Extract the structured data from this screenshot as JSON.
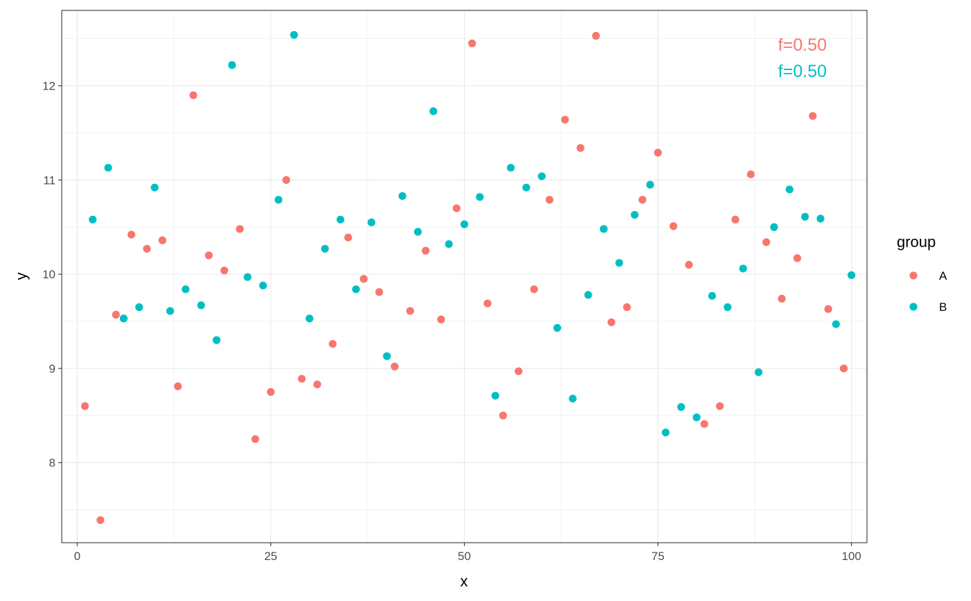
{
  "chart_data": {
    "type": "scatter",
    "xlabel": "x",
    "ylabel": "y",
    "xlim": [
      -2,
      102
    ],
    "ylim": [
      7.15,
      12.8
    ],
    "x_ticks": [
      0,
      25,
      50,
      75,
      100
    ],
    "x_tick_labels": [
      "0",
      "25",
      "50",
      "75",
      "100"
    ],
    "y_ticks": [
      8,
      9,
      10,
      11,
      12
    ],
    "y_tick_labels": [
      "8",
      "9",
      "10",
      "11",
      "12"
    ],
    "grid": true,
    "legend": {
      "title": "group",
      "placement": "right",
      "entries": [
        {
          "label": "A",
          "color": "#F8766D"
        },
        {
          "label": "B",
          "color": "#00BFC4"
        }
      ]
    },
    "annotations": [
      {
        "text": "f=0.50",
        "color": "#F8766D"
      },
      {
        "text": "f=0.50",
        "color": "#00BFC4"
      }
    ],
    "series": [
      {
        "name": "A",
        "color": "#F8766D",
        "points": [
          [
            1,
            8.6
          ],
          [
            3,
            7.39
          ],
          [
            5,
            9.57
          ],
          [
            7,
            10.42
          ],
          [
            9,
            10.27
          ],
          [
            11,
            10.36
          ],
          [
            13,
            8.81
          ],
          [
            15,
            11.9
          ],
          [
            17,
            10.2
          ],
          [
            19,
            10.04
          ],
          [
            21,
            10.48
          ],
          [
            23,
            8.25
          ],
          [
            25,
            8.75
          ],
          [
            27,
            11.0
          ],
          [
            29,
            8.89
          ],
          [
            31,
            8.83
          ],
          [
            33,
            9.26
          ],
          [
            35,
            10.39
          ],
          [
            37,
            9.95
          ],
          [
            39,
            9.81
          ],
          [
            41,
            9.02
          ],
          [
            43,
            9.61
          ],
          [
            45,
            10.25
          ],
          [
            47,
            9.52
          ],
          [
            49,
            10.7
          ],
          [
            51,
            12.45
          ],
          [
            53,
            9.69
          ],
          [
            55,
            8.5
          ],
          [
            57,
            8.97
          ],
          [
            59,
            9.84
          ],
          [
            61,
            10.79
          ],
          [
            63,
            11.64
          ],
          [
            65,
            11.34
          ],
          [
            67,
            12.53
          ],
          [
            69,
            9.49
          ],
          [
            71,
            9.65
          ],
          [
            73,
            10.79
          ],
          [
            75,
            11.29
          ],
          [
            77,
            10.51
          ],
          [
            79,
            10.1
          ],
          [
            81,
            8.41
          ],
          [
            83,
            8.6
          ],
          [
            85,
            10.58
          ],
          [
            87,
            11.06
          ],
          [
            89,
            10.34
          ],
          [
            91,
            9.74
          ],
          [
            93,
            10.17
          ],
          [
            95,
            11.68
          ],
          [
            97,
            9.63
          ],
          [
            99,
            9.0
          ]
        ]
      },
      {
        "name": "B",
        "color": "#00BFC4",
        "points": [
          [
            2,
            10.58
          ],
          [
            4,
            11.13
          ],
          [
            6,
            9.53
          ],
          [
            8,
            9.65
          ],
          [
            10,
            10.92
          ],
          [
            12,
            9.61
          ],
          [
            14,
            9.84
          ],
          [
            16,
            9.67
          ],
          [
            18,
            9.3
          ],
          [
            20,
            12.22
          ],
          [
            22,
            9.97
          ],
          [
            24,
            9.88
          ],
          [
            26,
            10.79
          ],
          [
            28,
            12.54
          ],
          [
            30,
            9.53
          ],
          [
            32,
            10.27
          ],
          [
            34,
            10.58
          ],
          [
            36,
            9.84
          ],
          [
            38,
            10.55
          ],
          [
            40,
            9.13
          ],
          [
            42,
            10.83
          ],
          [
            44,
            10.45
          ],
          [
            46,
            11.73
          ],
          [
            48,
            10.32
          ],
          [
            50,
            10.53
          ],
          [
            52,
            10.82
          ],
          [
            54,
            8.71
          ],
          [
            56,
            11.13
          ],
          [
            58,
            10.92
          ],
          [
            60,
            11.04
          ],
          [
            62,
            9.43
          ],
          [
            64,
            8.68
          ],
          [
            66,
            9.78
          ],
          [
            68,
            10.48
          ],
          [
            70,
            10.12
          ],
          [
            72,
            10.63
          ],
          [
            74,
            10.95
          ],
          [
            76,
            8.32
          ],
          [
            78,
            8.59
          ],
          [
            80,
            8.48
          ],
          [
            82,
            9.77
          ],
          [
            84,
            9.65
          ],
          [
            86,
            10.06
          ],
          [
            88,
            8.96
          ],
          [
            90,
            10.5
          ],
          [
            92,
            10.9
          ],
          [
            94,
            10.61
          ],
          [
            96,
            10.59
          ],
          [
            98,
            9.47
          ],
          [
            100,
            9.99
          ]
        ]
      }
    ]
  }
}
